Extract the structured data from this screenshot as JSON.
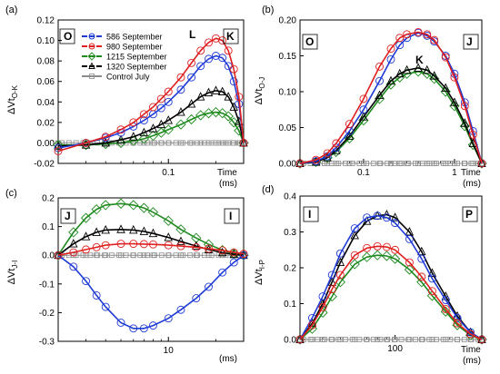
{
  "colors": {
    "s586": "#1f3bd6",
    "s980": "#e02020",
    "s1215": "#1e8a1e",
    "s1320": "#000000",
    "control": "#8c8c8c"
  },
  "legend": {
    "entries": [
      {
        "key": "s586",
        "label": "586 September",
        "marker": "circle"
      },
      {
        "key": "s980",
        "label": "980 September",
        "marker": "circle"
      },
      {
        "key": "s1215",
        "label": "1215 September",
        "marker": "diamond"
      },
      {
        "key": "s1320",
        "label": "1320 September",
        "marker": "triangle"
      },
      {
        "key": "control",
        "label": "Control July",
        "marker": "square"
      }
    ]
  },
  "chart_data": [
    {
      "panel": "(a)",
      "type": "line",
      "ylabel_main": "ΔVt",
      "ylabel_sub": "O-K",
      "time_label": "Time",
      "time_unit": "(ms)",
      "corner_left": "O",
      "corner_right": "K",
      "peak_label": "L",
      "xscale": "log",
      "xlim": [
        0.02,
        0.3
      ],
      "ylim": [
        -0.02,
        0.12
      ],
      "yticks": [
        {
          "v": -0.02,
          "label": "-0.02"
        },
        {
          "v": 0.0,
          "label": "0.00"
        },
        {
          "v": 0.02,
          "label": "0.02"
        },
        {
          "v": 0.04,
          "label": "0.04"
        },
        {
          "v": 0.06,
          "label": "0.06"
        },
        {
          "v": 0.08,
          "label": "0.08"
        },
        {
          "v": 0.1,
          "label": "0.10"
        },
        {
          "v": 0.12,
          "label": "0.12"
        }
      ],
      "xticks": [
        {
          "v": 0.1,
          "label": "0.1"
        }
      ],
      "x": [
        0.02,
        0.03,
        0.04,
        0.05,
        0.06,
        0.07,
        0.08,
        0.09,
        0.1,
        0.12,
        0.14,
        0.16,
        0.18,
        0.2,
        0.22,
        0.24,
        0.26,
        0.28,
        0.3
      ],
      "series": [
        {
          "key": "s586",
          "values": [
            -0.005,
            0.0,
            0.005,
            0.01,
            0.016,
            0.022,
            0.028,
            0.034,
            0.04,
            0.052,
            0.064,
            0.075,
            0.082,
            0.085,
            0.083,
            0.075,
            0.06,
            0.038,
            0.0
          ]
        },
        {
          "key": "s980",
          "values": [
            -0.008,
            0.0,
            0.006,
            0.013,
            0.02,
            0.028,
            0.035,
            0.043,
            0.05,
            0.064,
            0.078,
            0.09,
            0.098,
            0.102,
            0.1,
            0.09,
            0.072,
            0.045,
            0.0
          ]
        },
        {
          "key": "s1215",
          "values": [
            -0.002,
            -0.002,
            -0.001,
            0.0,
            0.002,
            0.004,
            0.007,
            0.01,
            0.013,
            0.018,
            0.023,
            0.027,
            0.029,
            0.03,
            0.029,
            0.026,
            0.02,
            0.012,
            0.0
          ]
        },
        {
          "key": "s1320",
          "values": [
            -0.003,
            -0.002,
            0.0,
            0.003,
            0.006,
            0.01,
            0.014,
            0.018,
            0.022,
            0.03,
            0.038,
            0.045,
            0.049,
            0.051,
            0.05,
            0.045,
            0.035,
            0.021,
            0.0
          ]
        },
        {
          "key": "control",
          "values": [
            0,
            0,
            0,
            0,
            0,
            0,
            0,
            0,
            0,
            0,
            0,
            0,
            0,
            0,
            0,
            0,
            0,
            0,
            0
          ]
        }
      ]
    },
    {
      "panel": "(b)",
      "type": "line",
      "ylabel_main": "ΔVt",
      "ylabel_sub": "O-J",
      "time_label": "Time",
      "time_unit": "(ms)",
      "corner_left": "O",
      "corner_right": "J",
      "peak_label": "K",
      "xscale": "log",
      "xlim": [
        0.02,
        2
      ],
      "ylim": [
        0,
        0.2
      ],
      "yticks": [
        {
          "v": 0.0,
          "label": "0.00"
        },
        {
          "v": 0.05,
          "label": "0.05"
        },
        {
          "v": 0.1,
          "label": "0.10"
        },
        {
          "v": 0.15,
          "label": "0.15"
        },
        {
          "v": 0.2,
          "label": "0.20"
        }
      ],
      "xticks": [
        {
          "v": 0.1,
          "label": "0.1"
        },
        {
          "v": 1,
          "label": "1"
        }
      ],
      "x": [
        0.02,
        0.03,
        0.04,
        0.05,
        0.07,
        0.1,
        0.15,
        0.2,
        0.25,
        0.3,
        0.4,
        0.5,
        0.6,
        0.8,
        1.0,
        1.3,
        1.6,
        2.0
      ],
      "series": [
        {
          "key": "s586",
          "values": [
            0.0,
            0.003,
            0.01,
            0.022,
            0.045,
            0.075,
            0.115,
            0.145,
            0.165,
            0.175,
            0.182,
            0.178,
            0.17,
            0.15,
            0.125,
            0.085,
            0.045,
            0.0
          ]
        },
        {
          "key": "s980",
          "values": [
            0.0,
            0.005,
            0.014,
            0.028,
            0.055,
            0.09,
            0.135,
            0.16,
            0.175,
            0.18,
            0.183,
            0.18,
            0.172,
            0.148,
            0.12,
            0.08,
            0.04,
            0.0
          ]
        },
        {
          "key": "s1215",
          "values": [
            0.0,
            0.002,
            0.008,
            0.016,
            0.035,
            0.06,
            0.09,
            0.11,
            0.12,
            0.125,
            0.128,
            0.125,
            0.118,
            0.1,
            0.08,
            0.052,
            0.026,
            0.0
          ]
        },
        {
          "key": "s1320",
          "values": [
            0.0,
            0.002,
            0.008,
            0.018,
            0.038,
            0.065,
            0.095,
            0.115,
            0.125,
            0.13,
            0.133,
            0.13,
            0.122,
            0.105,
            0.085,
            0.056,
            0.028,
            0.0
          ]
        },
        {
          "key": "control",
          "values": [
            0,
            0,
            0,
            0,
            0,
            0,
            0,
            0,
            0,
            0,
            0,
            0,
            0,
            0,
            0,
            0,
            0,
            0
          ]
        }
      ]
    },
    {
      "panel": "(c)",
      "type": "line",
      "ylabel_main": "ΔVt",
      "ylabel_sub": "J-I",
      "time_label": "",
      "time_unit": "(ms)",
      "corner_left": "J",
      "corner_right": "I",
      "peak_label": "",
      "xscale": "log",
      "xlim": [
        2,
        30
      ],
      "ylim": [
        -0.3,
        0.2
      ],
      "yticks": [
        {
          "v": -0.3,
          "label": "-0.3"
        },
        {
          "v": -0.2,
          "label": "-0.2"
        },
        {
          "v": -0.1,
          "label": "-0.1"
        },
        {
          "v": 0.0,
          "label": "0.0"
        },
        {
          "v": 0.1,
          "label": "0.1"
        },
        {
          "v": 0.2,
          "label": "0.2"
        }
      ],
      "xticks": [
        {
          "v": 10,
          "label": "10"
        }
      ],
      "x": [
        2,
        2.5,
        3,
        3.5,
        4,
        5,
        6,
        7,
        8,
        10,
        12,
        15,
        18,
        22,
        26,
        30
      ],
      "series": [
        {
          "key": "s586",
          "values": [
            0.0,
            -0.04,
            -0.09,
            -0.14,
            -0.18,
            -0.235,
            -0.255,
            -0.255,
            -0.245,
            -0.22,
            -0.19,
            -0.15,
            -0.11,
            -0.06,
            -0.025,
            0.0
          ]
        },
        {
          "key": "s980",
          "values": [
            0.0,
            0.01,
            0.02,
            0.028,
            0.035,
            0.04,
            0.04,
            0.039,
            0.038,
            0.035,
            0.032,
            0.028,
            0.023,
            0.017,
            0.01,
            0.005
          ]
        },
        {
          "key": "s1215",
          "values": [
            0.0,
            0.08,
            0.13,
            0.16,
            0.175,
            0.18,
            0.175,
            0.165,
            0.15,
            0.12,
            0.09,
            0.06,
            0.038,
            0.018,
            0.006,
            0.0
          ]
        },
        {
          "key": "s1320",
          "values": [
            0.0,
            0.04,
            0.065,
            0.08,
            0.088,
            0.09,
            0.088,
            0.083,
            0.076,
            0.062,
            0.048,
            0.032,
            0.02,
            0.009,
            0.003,
            0.0
          ]
        },
        {
          "key": "control",
          "values": [
            0,
            0,
            0,
            0,
            0,
            0,
            0,
            0,
            0,
            0,
            0,
            0,
            0,
            0,
            0,
            0
          ]
        }
      ]
    },
    {
      "panel": "(d)",
      "type": "line",
      "ylabel_main": "ΔVt",
      "ylabel_sub": "I-P",
      "time_label": "Time",
      "time_unit": "(ms)",
      "corner_left": "I",
      "corner_right": "P",
      "peak_label": "",
      "xscale": "log",
      "xlim": [
        30,
        300
      ],
      "ylim": [
        0,
        0.4
      ],
      "yticks": [
        {
          "v": 0.0,
          "label": "0.0"
        },
        {
          "v": 0.1,
          "label": "0.1"
        },
        {
          "v": 0.2,
          "label": "0.2"
        },
        {
          "v": 0.3,
          "label": "0.3"
        },
        {
          "v": 0.4,
          "label": "0.4"
        }
      ],
      "xticks": [
        {
          "v": 100,
          "label": "100"
        }
      ],
      "x": [
        30,
        35,
        40,
        45,
        50,
        60,
        70,
        80,
        90,
        100,
        120,
        140,
        160,
        190,
        220,
        260,
        300
      ],
      "series": [
        {
          "key": "s586",
          "values": [
            0.0,
            0.06,
            0.12,
            0.18,
            0.24,
            0.31,
            0.34,
            0.345,
            0.34,
            0.325,
            0.28,
            0.225,
            0.17,
            0.11,
            0.06,
            0.02,
            0.0
          ]
        },
        {
          "key": "s980",
          "values": [
            0.0,
            0.04,
            0.09,
            0.14,
            0.18,
            0.235,
            0.255,
            0.26,
            0.258,
            0.25,
            0.215,
            0.175,
            0.135,
            0.085,
            0.045,
            0.015,
            0.0
          ]
        },
        {
          "key": "s1215",
          "values": [
            0.0,
            0.03,
            0.075,
            0.12,
            0.16,
            0.21,
            0.23,
            0.235,
            0.233,
            0.225,
            0.195,
            0.16,
            0.122,
            0.078,
            0.04,
            0.012,
            0.0
          ]
        },
        {
          "key": "s1320",
          "values": [
            0.0,
            0.045,
            0.1,
            0.16,
            0.215,
            0.29,
            0.33,
            0.345,
            0.348,
            0.34,
            0.3,
            0.245,
            0.185,
            0.12,
            0.065,
            0.02,
            0.0
          ]
        },
        {
          "key": "control",
          "values": [
            0,
            0,
            0,
            0,
            0,
            0,
            0,
            0,
            0,
            0,
            0,
            0,
            0,
            0,
            0,
            0,
            0
          ]
        }
      ]
    }
  ]
}
